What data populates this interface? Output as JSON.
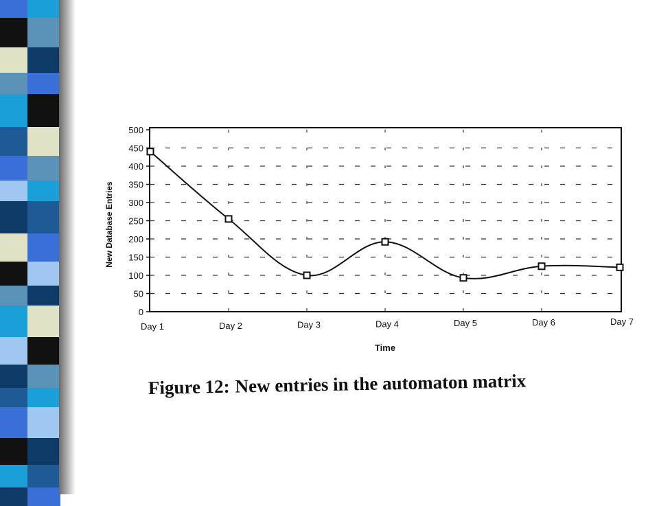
{
  "caption": {
    "label": "Figure 12:",
    "text": "New entries in the automaton matrix"
  },
  "decoration": {
    "stripe_colors": [
      "#1a9fd8",
      "#3a6fd8",
      "#0d3a66",
      "#111111",
      "#dfe2c4",
      "#5b93b8",
      "#9fc7ef",
      "#1f5a96"
    ]
  },
  "chart_data": {
    "type": "line",
    "title": "",
    "xlabel": "Time",
    "ylabel": "New Database Entries",
    "categories": [
      "Day 1",
      "Day 2",
      "Day 3",
      "Day 4",
      "Day 5",
      "Day 6",
      "Day 7"
    ],
    "series": [
      {
        "values": [
          440,
          255,
          100,
          192,
          93,
          125,
          122
        ]
      }
    ],
    "ylim": [
      0,
      500
    ],
    "yticks": [
      0,
      50,
      100,
      150,
      200,
      250,
      300,
      350,
      400,
      450,
      500
    ],
    "grid": "dashed",
    "marker": "square",
    "smooth": true,
    "legend": "none",
    "line_color": "#111111"
  }
}
